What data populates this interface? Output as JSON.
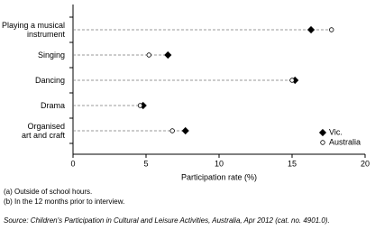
{
  "chart_data": {
    "type": "dot",
    "categories": [
      "Playing a musical\ninstrument",
      "Singing",
      "Dancing",
      "Drama",
      "Organised\nart and craft"
    ],
    "series": [
      {
        "name": "Vic.",
        "color": "#000000",
        "marker": "diamond",
        "filled": true,
        "values": [
          16.3,
          6.5,
          15.2,
          4.8,
          7.7
        ]
      },
      {
        "name": "Australia",
        "color": "#000000",
        "marker": "circle",
        "filled": false,
        "values": [
          17.7,
          5.2,
          15.0,
          4.6,
          6.8
        ]
      }
    ],
    "xlabel": "Participation rate (%)",
    "xlim": [
      0,
      20
    ],
    "xticks": [
      0,
      5,
      10,
      15,
      20
    ],
    "legend": "lower right",
    "notes": [
      "(a) Outside of school hours.",
      "(b) In the 12 months prior to interview."
    ],
    "source": "Source: Children's Participation in Cultural and Leisure Activities, Australia, Apr 2012 (cat. no. 4901.0)."
  }
}
